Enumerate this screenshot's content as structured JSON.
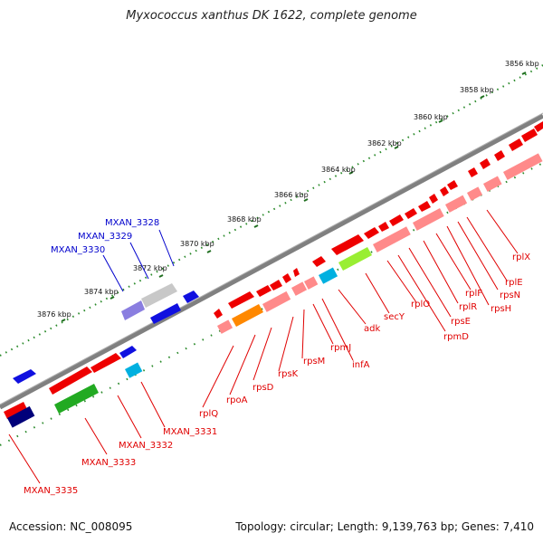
{
  "title": "Myxococcus xanthus DK 1622, complete genome",
  "accession": "Accession: NC_008095",
  "summary": "Topology: circular; Length: 9,139,763 bp; Genes: 7,410",
  "colors": {
    "label_red": "#e00000",
    "label_blue": "#0000cc",
    "tick_green": "#2a8a2a",
    "backbone": "#808080"
  },
  "scale_labels": [
    "3856 kbp",
    "3858 kbp",
    "3860 kbp",
    "3862 kbp",
    "3864 kbp",
    "3866 kbp",
    "3868 kbp",
    "3870 kbp",
    "3872 kbp",
    "3874 kbp",
    "3876 kbp"
  ],
  "gene_labels": [
    {
      "text": "MXAN_3328",
      "color": "blue"
    },
    {
      "text": "MXAN_3329",
      "color": "blue"
    },
    {
      "text": "MXAN_3330",
      "color": "blue"
    },
    {
      "text": "rplX",
      "color": "red"
    },
    {
      "text": "rplE",
      "color": "red"
    },
    {
      "text": "rpsN",
      "color": "red"
    },
    {
      "text": "rpsH",
      "color": "red"
    },
    {
      "text": "rplF",
      "color": "red"
    },
    {
      "text": "rplR",
      "color": "red"
    },
    {
      "text": "rpsE",
      "color": "red"
    },
    {
      "text": "rpmD",
      "color": "red"
    },
    {
      "text": "rplO",
      "color": "red"
    },
    {
      "text": "secY",
      "color": "red"
    },
    {
      "text": "adk",
      "color": "red"
    },
    {
      "text": "infA",
      "color": "red"
    },
    {
      "text": "rpmJ",
      "color": "red"
    },
    {
      "text": "rpsM",
      "color": "red"
    },
    {
      "text": "rpsK",
      "color": "red"
    },
    {
      "text": "rpsD",
      "color": "red"
    },
    {
      "text": "rpoA",
      "color": "red"
    },
    {
      "text": "rplQ",
      "color": "red"
    },
    {
      "text": "MXAN_3331",
      "color": "red"
    },
    {
      "text": "MXAN_3332",
      "color": "red"
    },
    {
      "text": "MXAN_3333",
      "color": "red"
    },
    {
      "text": "MXAN_3335",
      "color": "red"
    }
  ]
}
